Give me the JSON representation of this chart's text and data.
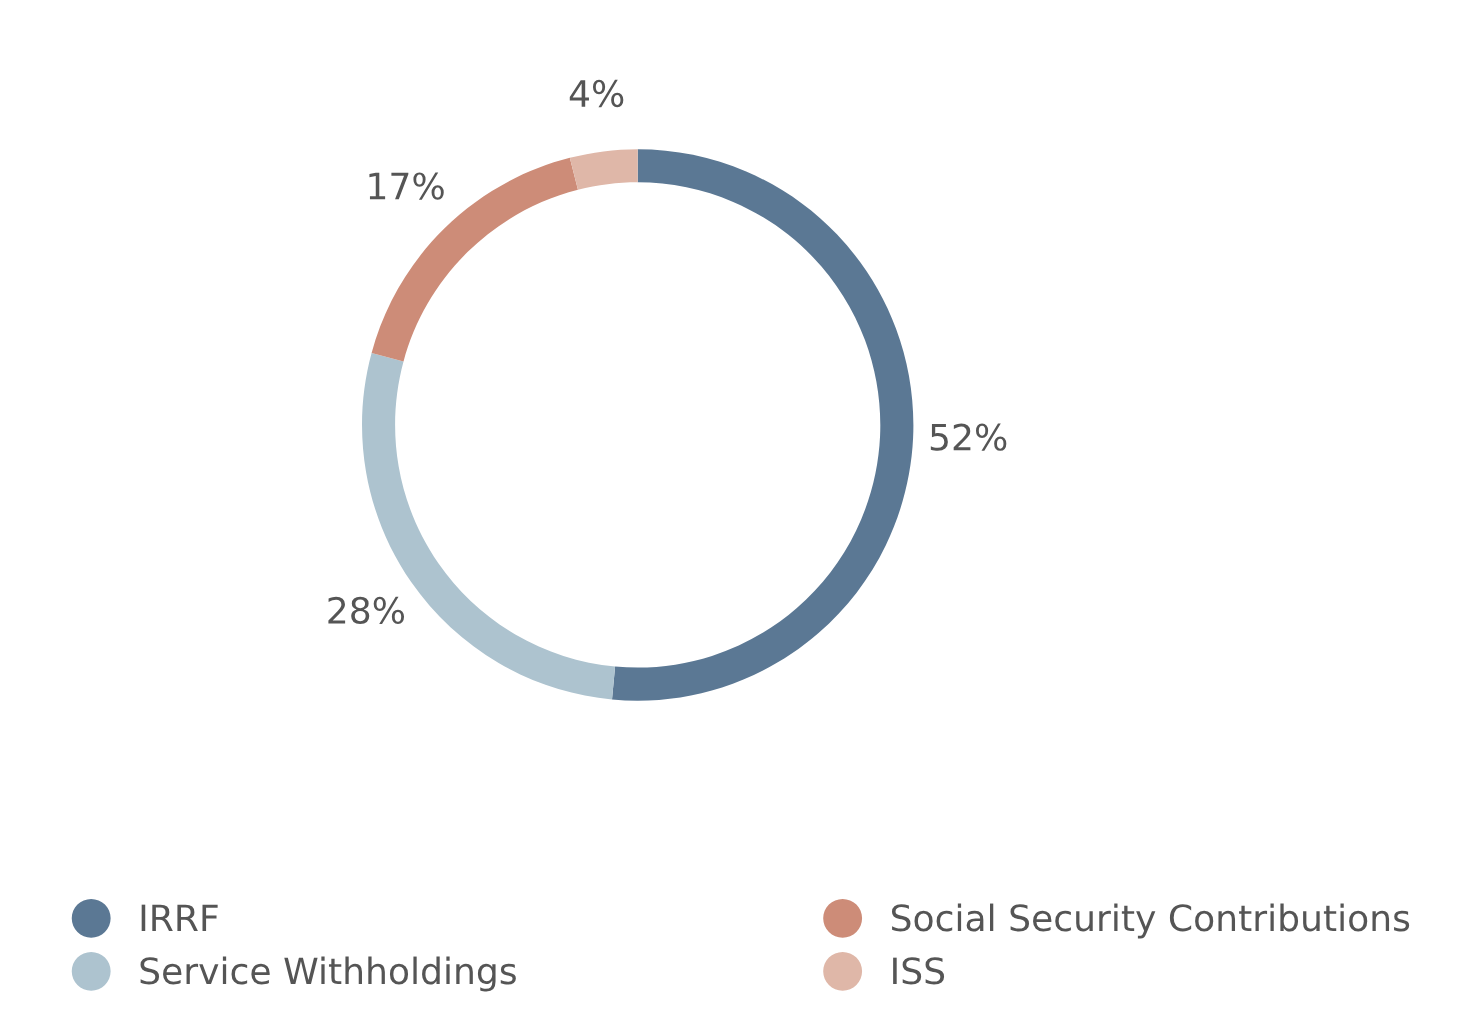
{
  "chart_data": {
    "type": "donut",
    "categories": [
      "IRRF",
      "Service Withholdings",
      "Social Security Contributions",
      "ISS"
    ],
    "values": [
      52,
      28,
      17,
      4
    ],
    "value_labels": [
      "52%",
      "28%",
      "17%",
      "4%"
    ],
    "colors": [
      "#5b7894",
      "#adc3cf",
      "#cd8c78",
      "#dfb7a8"
    ],
    "legend": "bottom"
  }
}
